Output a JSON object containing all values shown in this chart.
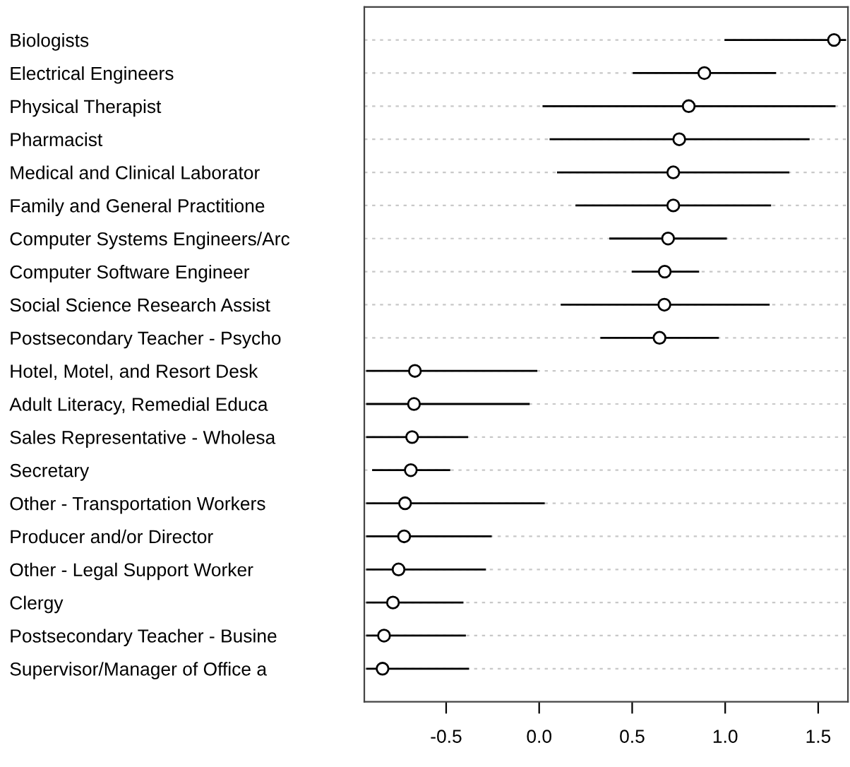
{
  "chart_data": {
    "type": "scatter",
    "orientation": "horizontal",
    "marker": "circle",
    "grid": "y",
    "legend": false,
    "color": "#000000",
    "categories": [
      "Biologists",
      "Electrical Engineers",
      "Physical Therapist",
      "Pharmacist",
      "Medical and Clinical Laborator",
      "Family and General Practitione",
      "Computer Systems Engineers/Arc",
      "Computer Software Engineer",
      "Social Science Research Assist",
      "Postsecondary Teacher - Psycho",
      "Hotel, Motel, and Resort Desk",
      "Adult Literacy, Remedial Educa",
      "Sales Representative - Wholesa",
      "Secretary",
      "Other - Transportation Workers",
      "Producer and/or Director",
      "Other - Legal Support Worker",
      "Clergy",
      "Postsecondary Teacher - Busine",
      "Supervisor/Manager of Office a"
    ],
    "values": [
      1.585,
      0.888,
      0.804,
      0.753,
      0.721,
      0.721,
      0.693,
      0.675,
      0.673,
      0.647,
      -0.668,
      -0.673,
      -0.683,
      -0.69,
      -0.721,
      -0.726,
      -0.756,
      -0.786,
      -0.834,
      -0.842
    ],
    "errors": [
      [
        0.996,
        1.65
      ],
      [
        0.503,
        1.274
      ],
      [
        0.018,
        1.593
      ],
      [
        0.056,
        1.454
      ],
      [
        0.096,
        1.345
      ],
      [
        0.195,
        1.247
      ],
      [
        0.377,
        1.009
      ],
      [
        0.498,
        0.86
      ],
      [
        0.116,
        1.239
      ],
      [
        0.329,
        0.966
      ],
      [
        -0.93,
        -0.01
      ],
      [
        -0.93,
        -0.051
      ],
      [
        -0.93,
        -0.382
      ],
      [
        -0.898,
        -0.478
      ],
      [
        -0.93,
        0.03
      ],
      [
        -0.93,
        -0.255
      ],
      [
        -0.93,
        -0.286
      ],
      [
        -0.93,
        -0.407
      ],
      [
        -0.93,
        -0.394
      ],
      [
        -0.93,
        -0.377
      ]
    ],
    "xlim": [
      -0.94,
      1.66
    ],
    "xticks": [
      {
        "value": -0.5,
        "label": "-0.5"
      },
      {
        "value": 0,
        "label": "0.0"
      },
      {
        "value": 0.5,
        "label": "0.5"
      },
      {
        "value": 1,
        "label": "1.0"
      },
      {
        "value": 1.5,
        "label": "1.5"
      }
    ]
  }
}
